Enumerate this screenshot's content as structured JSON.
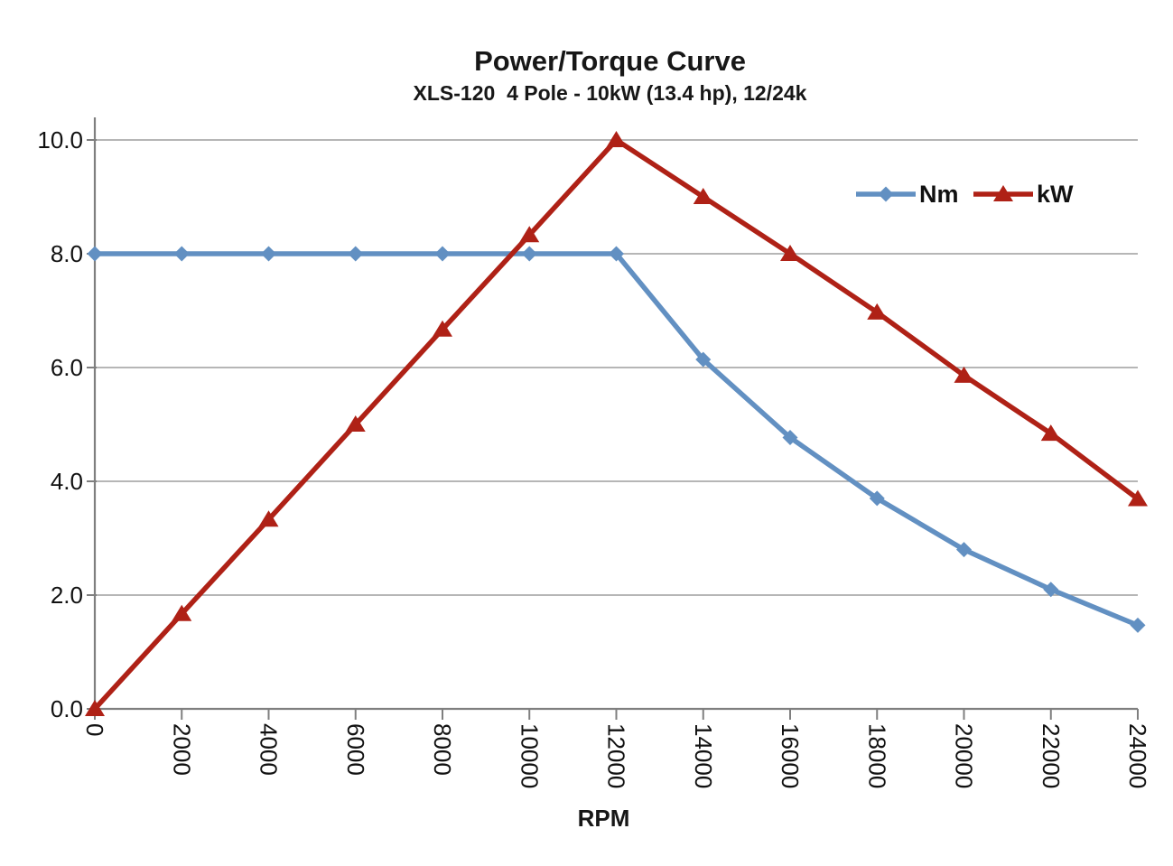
{
  "chart": {
    "title": "Power/Torque Curve",
    "subtitle": "XLS-120  4 Pole - 10kW (13.4 hp), 12/24k",
    "x_axis_label": "RPM"
  },
  "chart_data": {
    "type": "line",
    "title": "Power/Torque Curve",
    "subtitle": "XLS-120  4 Pole - 10kW (13.4 hp), 12/24k",
    "xlabel": "RPM",
    "ylabel": "",
    "x": [
      0,
      2000,
      4000,
      6000,
      8000,
      10000,
      12000,
      14000,
      16000,
      18000,
      20000,
      22000,
      24000
    ],
    "x_tick_labels": [
      "0",
      "2000",
      "4000",
      "6000",
      "8000",
      "10000",
      "12000",
      "14000",
      "16000",
      "18000",
      "20000",
      "22000",
      "24000"
    ],
    "y_ticks": [
      0,
      2,
      4,
      6,
      8,
      10
    ],
    "y_tick_labels": [
      "0.0",
      "2.0",
      "4.0",
      "6.0",
      "8.0",
      "10.0"
    ],
    "xlim": [
      0,
      24000
    ],
    "ylim": [
      0,
      10
    ],
    "grid": true,
    "legend_position": "upper-right",
    "series": [
      {
        "name": "Nm",
        "marker": "diamond",
        "color": "#6290C2",
        "values": [
          8.0,
          8.0,
          8.0,
          8.0,
          8.0,
          8.0,
          8.0,
          6.14,
          4.77,
          3.7,
          2.8,
          2.1,
          1.47
        ]
      },
      {
        "name": "kW",
        "marker": "triangle",
        "color": "#AF2116",
        "values": [
          0.0,
          1.67,
          3.33,
          5.0,
          6.67,
          8.33,
          10.0,
          9.0,
          8.0,
          6.97,
          5.86,
          4.84,
          3.69
        ]
      }
    ],
    "colors": {
      "axis": "#7F7F7F",
      "grid": "#9E9E9E",
      "tick_text": "#111111"
    }
  }
}
